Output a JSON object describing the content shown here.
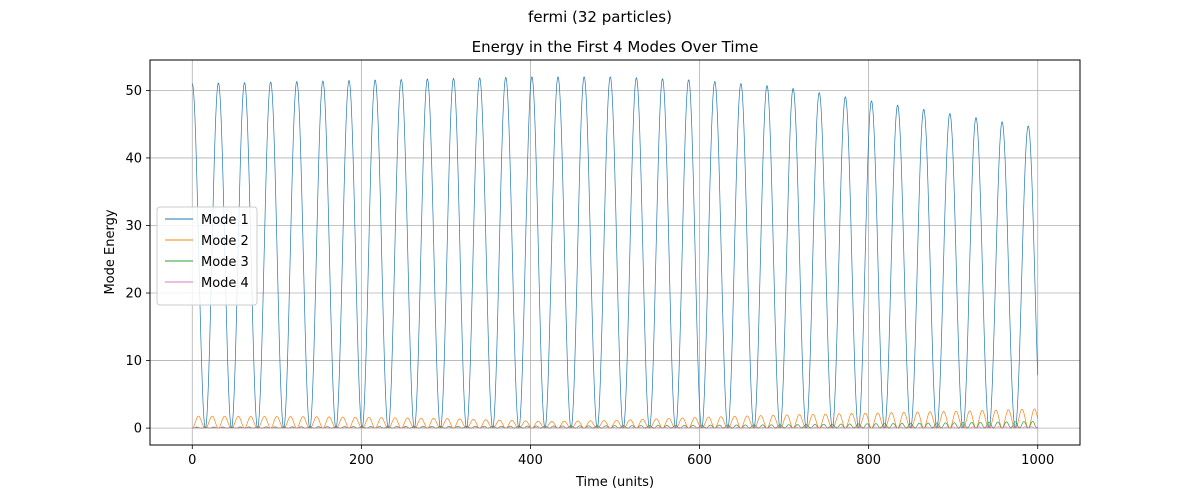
{
  "figure": {
    "suptitle": "fermi (32 particles)"
  },
  "chart_data": {
    "type": "line",
    "title": "Energy in the First 4 Modes Over Time",
    "xlabel": "Time (units)",
    "ylabel": "Mode Energy",
    "xlim": [
      -50,
      1050
    ],
    "ylim": [
      -2.5,
      54.5
    ],
    "xticks": [
      0,
      200,
      400,
      600,
      800,
      1000
    ],
    "yticks": [
      0,
      10,
      20,
      30,
      40,
      50
    ],
    "grid": true,
    "legend_location": "center-left",
    "series": [
      {
        "name": "Mode 1",
        "color": "#1f77b4",
        "model": "oscillation",
        "t_range": [
          0,
          1000
        ],
        "period": 30.9,
        "phase": 0,
        "amplitude_knots": [
          [
            0,
            51
          ],
          [
            400,
            52
          ],
          [
            500,
            52
          ],
          [
            600,
            51.5
          ],
          [
            700,
            50.5
          ],
          [
            800,
            48.5
          ],
          [
            900,
            46.5
          ],
          [
            1000,
            44.5
          ]
        ],
        "shape": "cos2"
      },
      {
        "name": "Mode 2",
        "color": "#ff7f0e",
        "model": "double-frequency",
        "t_range": [
          0,
          1000
        ],
        "period": 30.9,
        "amplitude_knots": [
          [
            0,
            2.0
          ],
          [
            150,
            1.9
          ],
          [
            300,
            1.6
          ],
          [
            420,
            1.1
          ],
          [
            500,
            1.3
          ],
          [
            600,
            1.8
          ],
          [
            700,
            2.2
          ],
          [
            800,
            2.5
          ],
          [
            900,
            2.8
          ],
          [
            1000,
            3.2
          ]
        ],
        "shape": "sin2-double"
      },
      {
        "name": "Mode 3",
        "color": "#2ca02c",
        "model": "small-oscillation",
        "t_range": [
          0,
          1000
        ],
        "period": 30.9,
        "amplitude_knots": [
          [
            0,
            0.15
          ],
          [
            400,
            0.3
          ],
          [
            700,
            0.5
          ],
          [
            900,
            0.8
          ],
          [
            1000,
            1.0
          ]
        ],
        "shape": "sin2-triple"
      },
      {
        "name": "Mode 4",
        "color": "#e377c2",
        "model": "small-oscillation",
        "t_range": [
          0,
          1000
        ],
        "period": 30.9,
        "amplitude_knots": [
          [
            0,
            0.05
          ],
          [
            500,
            0.1
          ],
          [
            1000,
            0.2
          ]
        ],
        "shape": "sin2-quad"
      }
    ]
  }
}
